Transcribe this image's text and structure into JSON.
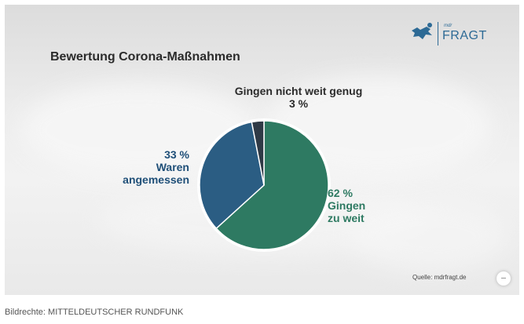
{
  "chart_data": {
    "type": "pie",
    "title": "Bewertung Corona-Maßnahmen",
    "slices": [
      {
        "label": "Gingen zu weit",
        "value": 62,
        "display": "62 %",
        "lines": [
          "Gingen",
          "zu weit"
        ],
        "color": "#2e7a62"
      },
      {
        "label": "Waren angemessen",
        "value": 33,
        "display": "33 %",
        "lines": [
          "Waren",
          "angemessen"
        ],
        "color": "#2b5d83"
      },
      {
        "label": "Gingen nicht weit genug",
        "value": 3,
        "display": "3 %",
        "lines": [
          "Gingen nicht weit genug"
        ],
        "color": "#2f3a46"
      }
    ],
    "start": "12 o'clock",
    "direction": "clockwise",
    "legend": "none",
    "colors": {
      "ring": "#ffffff"
    }
  },
  "logo": {
    "small": "mdr",
    "word": "FRAGT",
    "color": "#2d6a95",
    "icon": "mdr-logo-icon"
  },
  "source": "Quelle: mdrfragt.de",
  "play_icon": "minus-icon",
  "credit": "Bildrechte: MITTELDEUTSCHER RUNDFUNK"
}
